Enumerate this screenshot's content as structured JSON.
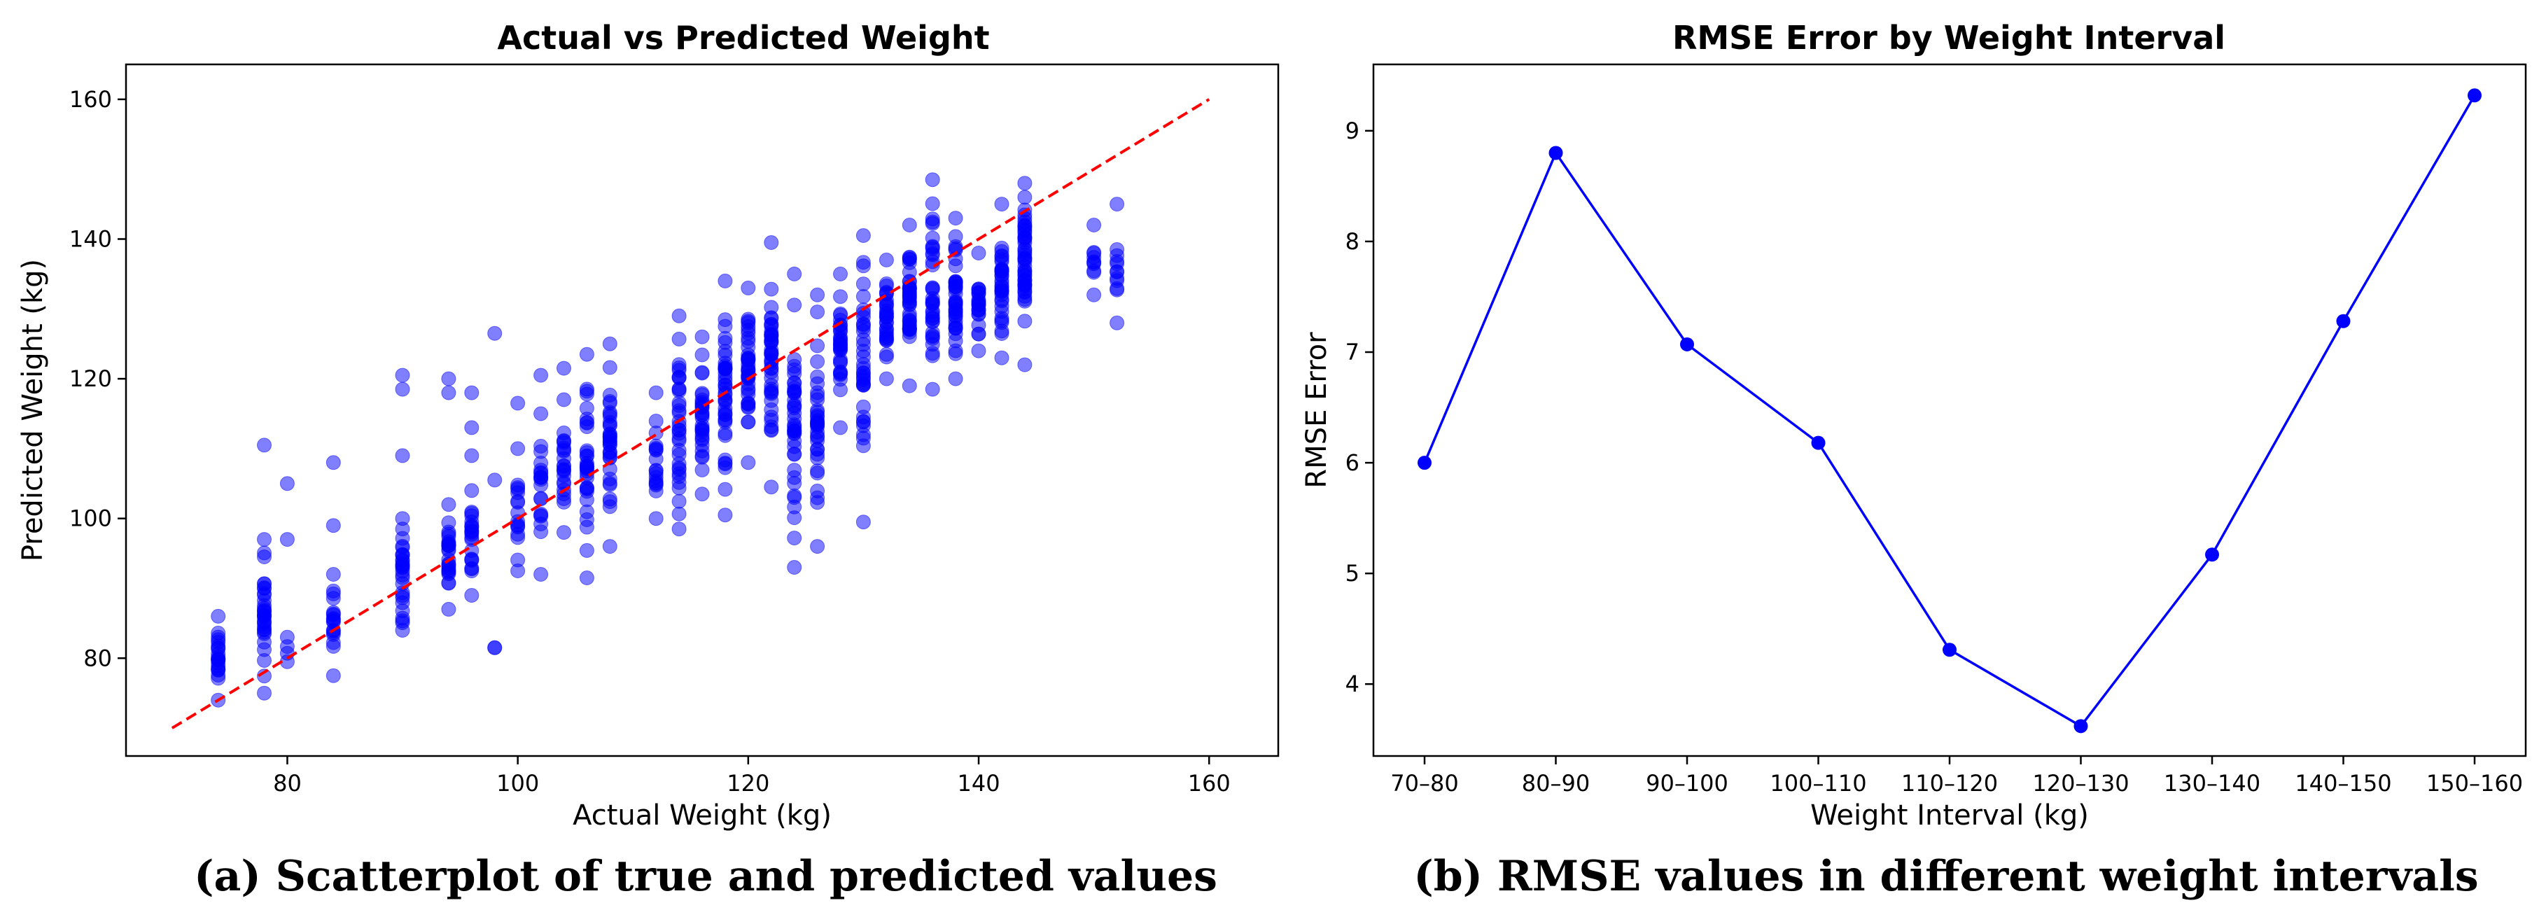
{
  "chart_data": [
    {
      "type": "scatter",
      "title": "Actual vs Predicted Weight",
      "xlabel": "Actual Weight (kg)",
      "ylabel": "Predicted Weight (kg)",
      "xlim": [
        66,
        166
      ],
      "ylim": [
        66,
        165
      ],
      "xticks": [
        80,
        100,
        120,
        140,
        160
      ],
      "yticks": [
        80,
        100,
        120,
        140,
        160
      ],
      "point_color": "#0000ff",
      "reference_line": {
        "x": [
          70,
          160
        ],
        "y": [
          70,
          160
        ],
        "color": "#ff0000",
        "style": "dashed"
      },
      "caption": "(a) Scatterplot of true and predicted values",
      "columns": [
        {
          "x": 74,
          "min": 74,
          "max": 86,
          "n": 22
        },
        {
          "x": 78,
          "min": 75,
          "max": 97,
          "n": 32,
          "outliers": [
            110.5
          ]
        },
        {
          "x": 80,
          "min": 79.5,
          "max": 83,
          "n": 4,
          "outliers": [
            97,
            105
          ]
        },
        {
          "x": 84,
          "min": 77.5,
          "max": 92,
          "n": 18,
          "outliers": [
            99,
            108
          ]
        },
        {
          "x": 90,
          "min": 84,
          "max": 100,
          "n": 28,
          "outliers": [
            109,
            118.5,
            120.5
          ]
        },
        {
          "x": 94,
          "min": 87,
          "max": 102,
          "n": 26,
          "outliers": [
            118,
            120
          ]
        },
        {
          "x": 96,
          "min": 89,
          "max": 104,
          "n": 22,
          "outliers": [
            109,
            113,
            118
          ]
        },
        {
          "x": 98,
          "min": 81.5,
          "max": 81.5,
          "n": 1,
          "outliers": [
            105.5,
            126.5
          ]
        },
        {
          "x": 100,
          "min": 92.5,
          "max": 110,
          "n": 16,
          "outliers": [
            116.5
          ]
        },
        {
          "x": 102,
          "min": 92,
          "max": 115,
          "n": 20,
          "outliers": [
            120.5
          ]
        },
        {
          "x": 104,
          "min": 98,
          "max": 117,
          "n": 22,
          "outliers": [
            121.5
          ]
        },
        {
          "x": 106,
          "min": 91.5,
          "max": 123.5,
          "n": 32
        },
        {
          "x": 108,
          "min": 96,
          "max": 125,
          "n": 34
        },
        {
          "x": 112,
          "min": 100,
          "max": 118,
          "n": 18
        },
        {
          "x": 114,
          "min": 98.5,
          "max": 129,
          "n": 34
        },
        {
          "x": 116,
          "min": 103.5,
          "max": 126,
          "n": 30
        },
        {
          "x": 118,
          "min": 100.5,
          "max": 134,
          "n": 40
        },
        {
          "x": 120,
          "min": 108,
          "max": 133,
          "n": 38
        },
        {
          "x": 122,
          "min": 104.5,
          "max": 139.5,
          "n": 42
        },
        {
          "x": 124,
          "min": 93,
          "max": 135,
          "n": 40
        },
        {
          "x": 126,
          "min": 96,
          "max": 132,
          "n": 34
        },
        {
          "x": 128,
          "min": 113,
          "max": 135,
          "n": 32
        },
        {
          "x": 130,
          "min": 99.5,
          "max": 140.5,
          "n": 36
        },
        {
          "x": 132,
          "min": 120,
          "max": 137,
          "n": 30
        },
        {
          "x": 134,
          "min": 119,
          "max": 142,
          "n": 40
        },
        {
          "x": 136,
          "min": 118.5,
          "max": 148.5,
          "n": 36
        },
        {
          "x": 138,
          "min": 120,
          "max": 143,
          "n": 38
        },
        {
          "x": 140,
          "min": 124,
          "max": 138,
          "n": 22
        },
        {
          "x": 142,
          "min": 123,
          "max": 145,
          "n": 34
        },
        {
          "x": 144,
          "min": 122,
          "max": 148,
          "n": 46
        },
        {
          "x": 150,
          "min": 132,
          "max": 142,
          "n": 10
        },
        {
          "x": 152,
          "min": 128,
          "max": 145,
          "n": 12
        }
      ]
    },
    {
      "type": "line",
      "title": "RMSE Error by Weight Interval",
      "xlabel": "Weight Interval (kg)",
      "ylabel": "RMSE Error",
      "categories": [
        "70–80",
        "80–90",
        "90–100",
        "100–110",
        "110–120",
        "120–130",
        "130–140",
        "140–150",
        "150–160"
      ],
      "values": [
        6.0,
        8.8,
        7.07,
        6.18,
        4.31,
        3.62,
        5.17,
        7.28,
        9.32
      ],
      "ylim": [
        3.35,
        9.6
      ],
      "yticks": [
        4,
        5,
        6,
        7,
        8,
        9
      ],
      "line_color": "#0000ff",
      "caption": "(b) RMSE values in different weight intervals"
    }
  ]
}
